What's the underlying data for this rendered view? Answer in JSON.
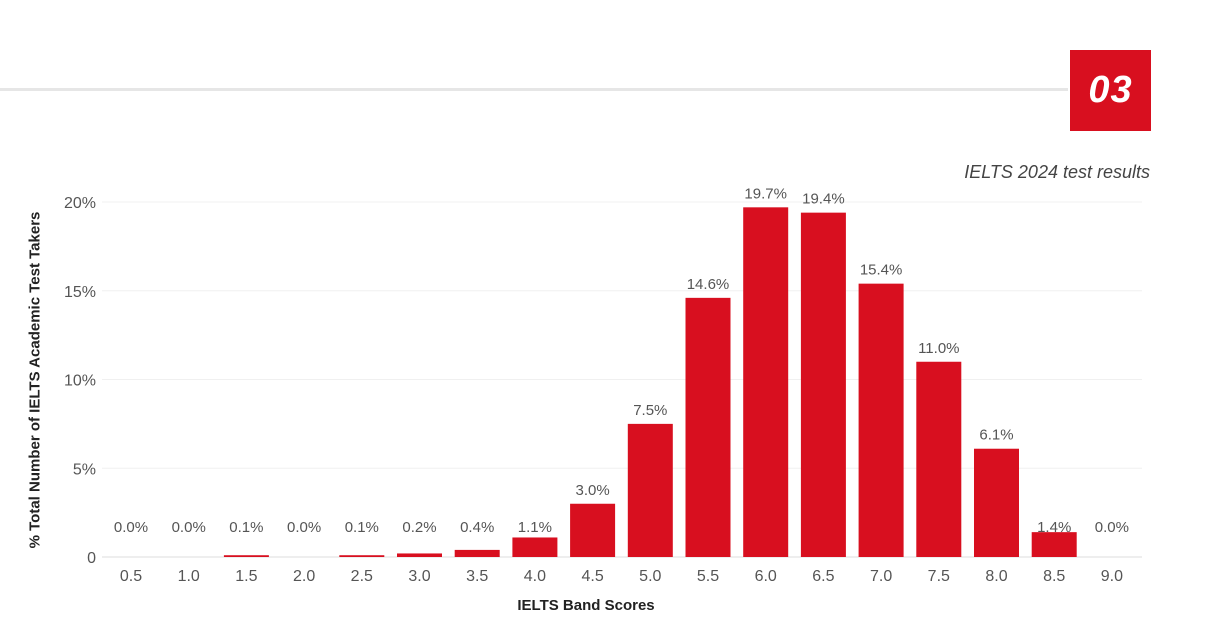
{
  "badge": {
    "label": "03"
  },
  "colors": {
    "accent": "#d80f1f",
    "grid": "#f0f0f0",
    "rule": "#e6e6e6"
  },
  "chart_data": {
    "type": "bar",
    "title": "",
    "subtitle": "IELTS 2024 test results",
    "xlabel": "IELTS Band Scores",
    "ylabel": "% Total Number of IELTS Academic Test Takers",
    "categories": [
      "0.5",
      "1.0",
      "1.5",
      "2.0",
      "2.5",
      "3.0",
      "3.5",
      "4.0",
      "4.5",
      "5.0",
      "5.5",
      "6.0",
      "6.5",
      "7.0",
      "7.5",
      "8.0",
      "8.5",
      "9.0"
    ],
    "values": [
      0.0,
      0.0,
      0.1,
      0.0,
      0.1,
      0.2,
      0.4,
      1.1,
      3.0,
      7.5,
      14.6,
      19.7,
      19.4,
      15.4,
      11.0,
      6.1,
      1.4,
      0.0
    ],
    "data_labels": [
      "0.0%",
      "0.0%",
      "0.1%",
      "0.0%",
      "0.1%",
      "0.2%",
      "0.4%",
      "1.1%",
      "3.0%",
      "7.5%",
      "14.6%",
      "19.7%",
      "19.4%",
      "15.4%",
      "11.0%",
      "6.1%",
      "1.4%",
      "0.0%"
    ],
    "yticks": [
      0,
      5,
      10,
      15,
      20
    ],
    "ytick_labels": [
      "0",
      "5%",
      "10%",
      "15%",
      "20%"
    ],
    "ylim": [
      0,
      20
    ],
    "grid": true,
    "legend": "none"
  }
}
